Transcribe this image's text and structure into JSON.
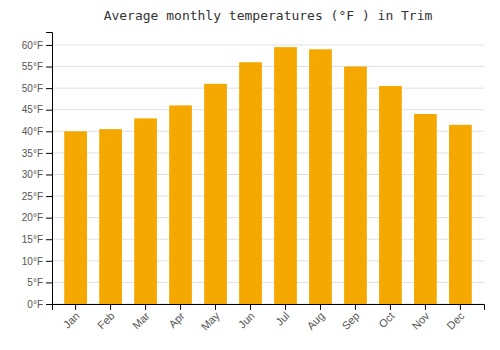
{
  "chart_data": {
    "type": "bar",
    "title": "Average monthly temperatures (°F ) in Trim",
    "categories": [
      "Jan",
      "Feb",
      "Mar",
      "Apr",
      "May",
      "Jun",
      "Jul",
      "Aug",
      "Sep",
      "Oct",
      "Nov",
      "Dec"
    ],
    "values": [
      40,
      40.5,
      43,
      46,
      51,
      56,
      59.5,
      59,
      55,
      50.5,
      44,
      41.5
    ],
    "color": "#F5A800",
    "ylim": [
      0,
      63
    ],
    "yticks": [
      {
        "value": 0,
        "label": "0°F"
      },
      {
        "value": 5,
        "label": "5°F"
      },
      {
        "value": 10,
        "label": "10°F"
      },
      {
        "value": 15,
        "label": "15°F"
      },
      {
        "value": 20,
        "label": "20°F"
      },
      {
        "value": 25,
        "label": "25°F"
      },
      {
        "value": 30,
        "label": "30°F"
      },
      {
        "value": 35,
        "label": "35°F"
      },
      {
        "value": 40,
        "label": "40°F"
      },
      {
        "value": 45,
        "label": "45°F"
      },
      {
        "value": 50,
        "label": "50°F"
      },
      {
        "value": 55,
        "label": "55°F"
      },
      {
        "value": 60,
        "label": "60°F"
      }
    ],
    "grid": true
  }
}
